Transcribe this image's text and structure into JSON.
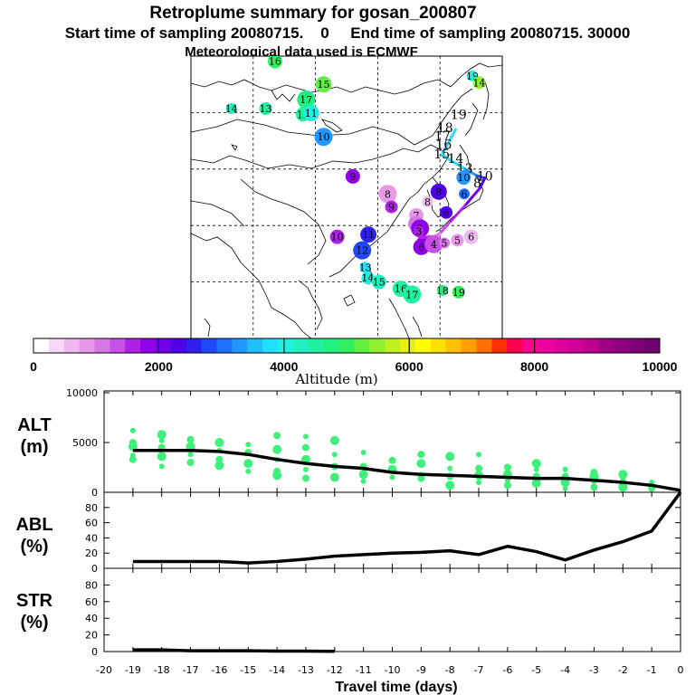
{
  "header": {
    "title": "Retroplume summary for gosan_200807",
    "sampling": "Start time of sampling 20080715.    0     End time of sampling 20080715. 30000",
    "met": "Meteorological data used is ECMWF"
  },
  "colorbar": {
    "label": "Altitude (m)",
    "ticks": [
      "0",
      "2000",
      "4000",
      "6000",
      "8000",
      "10000"
    ],
    "colors": [
      "#ffffff",
      "#f8d8f8",
      "#f0b8f0",
      "#e898e8",
      "#d878e8",
      "#c850e8",
      "#b020e8",
      "#9000e8",
      "#7000e8",
      "#5000e8",
      "#3020f0",
      "#2048f8",
      "#2070ff",
      "#2098ff",
      "#20c0ff",
      "#20e0ff",
      "#20f0e0",
      "#20f0c0",
      "#20f0a0",
      "#20f080",
      "#30f060",
      "#60f040",
      "#90f030",
      "#c0f020",
      "#e8f010",
      "#ffff00",
      "#ffe000",
      "#ffc000",
      "#ffa000",
      "#ff7000",
      "#ff3000",
      "#ff0050",
      "#ff0090",
      "#f000a0",
      "#e000a0",
      "#d00098",
      "#c00090",
      "#a00088",
      "#900080",
      "#800078",
      "#700070"
    ]
  },
  "map": {
    "labels": [
      {
        "t": "19",
        "lon": 125.2,
        "lat": 56.5,
        "alt": 4000
      },
      {
        "t": "14",
        "lon": 126.3,
        "lat": 55.3,
        "alt": 5600
      },
      {
        "t": "16",
        "lon": 93.5,
        "lat": 59.1,
        "alt": 5000
      },
      {
        "t": "15",
        "lon": 101.3,
        "lat": 55.0,
        "alt": 5300
      },
      {
        "t": "17",
        "lon": 98.5,
        "lat": 52.3,
        "alt": 4800
      },
      {
        "t": "14",
        "lon": 86.5,
        "lat": 50.7,
        "alt": 4200
      },
      {
        "t": "13",
        "lon": 92.0,
        "lat": 50.7,
        "alt": 4400
      },
      {
        "t": "12",
        "lon": 98.0,
        "lat": 49.7,
        "alt": 4400
      },
      {
        "t": "11",
        "lon": 99.3,
        "lat": 49.9,
        "alt": 4000
      },
      {
        "t": "10",
        "lon": 101.3,
        "lat": 45.7,
        "alt": 3400
      },
      {
        "t": "19",
        "lon": 123.0,
        "lat": 49.5,
        "alt": null
      },
      {
        "t": "18",
        "lon": 120.8,
        "lat": 47.2,
        "alt": null
      },
      {
        "t": "17",
        "lon": 120.4,
        "lat": 45.7,
        "alt": null
      },
      {
        "t": "16",
        "lon": 120.6,
        "lat": 44.2,
        "alt": null
      },
      {
        "t": "15",
        "lon": 120.3,
        "lat": 42.5,
        "alt": null
      },
      {
        "t": "14",
        "lon": 122.5,
        "lat": 41.7,
        "alt": null
      },
      {
        "t": "13",
        "lon": 124.0,
        "lat": 40.0,
        "alt": null
      },
      {
        "t": "10",
        "lon": 123.8,
        "lat": 38.5,
        "alt": 3200
      },
      {
        "t": "10",
        "lon": 127.2,
        "lat": 38.6,
        "alt": null
      },
      {
        "t": "8",
        "lon": 126.0,
        "lat": 37.4,
        "alt": null
      },
      {
        "t": "6",
        "lon": 123.9,
        "lat": 35.6,
        "alt": 3000
      },
      {
        "t": "6",
        "lon": 121.0,
        "lat": 32.3,
        "alt": 2400
      },
      {
        "t": "9",
        "lon": 106.0,
        "lat": 38.7,
        "alt": 1900
      },
      {
        "t": "8",
        "lon": 119.8,
        "lat": 36.0,
        "alt": 2200
      },
      {
        "t": "8",
        "lon": 111.6,
        "lat": 35.6,
        "alt": 900
      },
      {
        "t": "8",
        "lon": 118.0,
        "lat": 34.2,
        "alt": 500
      },
      {
        "t": "9",
        "lon": 112.2,
        "lat": 33.3,
        "alt": 1700
      },
      {
        "t": "10",
        "lon": 103.5,
        "lat": 28.0,
        "alt": 1500
      },
      {
        "t": "11",
        "lon": 108.5,
        "lat": 28.4,
        "alt": 2500
      },
      {
        "t": "12",
        "lon": 107.5,
        "lat": 25.6,
        "alt": 2700
      },
      {
        "t": "13",
        "lon": 108.0,
        "lat": 22.6,
        "alt": 3800
      },
      {
        "t": "14",
        "lon": 108.4,
        "lat": 20.7,
        "alt": 4100
      },
      {
        "t": "15",
        "lon": 110.2,
        "lat": 20.0,
        "alt": 4300
      },
      {
        "t": "16",
        "lon": 113.7,
        "lat": 18.8,
        "alt": 4500
      },
      {
        "t": "17",
        "lon": 115.5,
        "lat": 17.8,
        "alt": 4500
      },
      {
        "t": "18",
        "lon": 120.4,
        "lat": 18.5,
        "alt": 4700
      },
      {
        "t": "19",
        "lon": 123.0,
        "lat": 18.2,
        "alt": 4900
      },
      {
        "t": "7",
        "lon": 116.2,
        "lat": 31.8,
        "alt": 900
      },
      {
        "t": "4",
        "lon": 116.2,
        "lat": 30.3,
        "alt": 1200
      },
      {
        "t": "2",
        "lon": 116.8,
        "lat": 29.5,
        "alt": 1800
      },
      {
        "t": "3",
        "lon": 116.6,
        "lat": 29.0,
        "alt": 1700
      },
      {
        "t": "5",
        "lon": 118.4,
        "lat": 27.2,
        "alt": 1400
      },
      {
        "t": "3",
        "lon": 117.4,
        "lat": 27.0,
        "alt": 1500
      },
      {
        "t": "6",
        "lon": 117.0,
        "lat": 26.2,
        "alt": 1800
      },
      {
        "t": "4",
        "lon": 119.0,
        "lat": 26.7,
        "alt": 1300
      },
      {
        "t": "5",
        "lon": 120.7,
        "lat": 26.9,
        "alt": 1100
      },
      {
        "t": "5",
        "lon": 122.8,
        "lat": 27.4,
        "alt": 900
      },
      {
        "t": "6",
        "lon": 125.0,
        "lat": 28.0,
        "alt": 700
      }
    ],
    "track": [
      {
        "lon": 122.5,
        "lat": 47.0,
        "alt": 3700
      },
      {
        "lon": 120.3,
        "lat": 42.5,
        "alt": 3800
      },
      {
        "lon": 124.0,
        "lat": 40.0,
        "alt": 3600
      },
      {
        "lon": 126.0,
        "lat": 38.8,
        "alt": 3000
      },
      {
        "lon": 127.2,
        "lat": 38.4,
        "alt": 2600
      },
      {
        "lon": 126.4,
        "lat": 36.6,
        "alt": 2200
      },
      {
        "lon": 124.0,
        "lat": 33.5,
        "alt": 1800
      },
      {
        "lon": 121.5,
        "lat": 30.5,
        "alt": 1400
      },
      {
        "lon": 120.0,
        "lat": 28.6,
        "alt": 1200
      },
      {
        "lon": 119.0,
        "lat": 28.0,
        "alt": 1000
      }
    ]
  },
  "chart_data": [
    {
      "type": "scatter",
      "name": "ALT",
      "ylabel_top": "ALT",
      "ylabel_unit": "(m)",
      "ylim": [
        0,
        10000
      ],
      "yticks": [
        "0",
        "5000",
        "10000"
      ],
      "xlim": [
        -20,
        0
      ],
      "line_x": [
        -19,
        -18,
        -17,
        -16,
        -15,
        -14,
        -13,
        -12,
        -11,
        -10,
        -9,
        -8,
        -7,
        -6,
        -5,
        -4,
        -3,
        -2,
        -1,
        0
      ],
      "line_y": [
        4200,
        4200,
        4200,
        4100,
        3800,
        3300,
        2900,
        2600,
        2400,
        2000,
        1800,
        1700,
        1600,
        1500,
        1400,
        1400,
        1200,
        1000,
        700,
        200
      ],
      "points": [
        {
          "x": -19,
          "y": 6200
        },
        {
          "x": -19,
          "y": 5000
        },
        {
          "x": -19,
          "y": 4600
        },
        {
          "x": -19,
          "y": 3700
        },
        {
          "x": -19,
          "y": 3300
        },
        {
          "x": -18,
          "y": 5800
        },
        {
          "x": -18,
          "y": 5200
        },
        {
          "x": -18,
          "y": 4500
        },
        {
          "x": -18,
          "y": 3600
        },
        {
          "x": -18,
          "y": 2600
        },
        {
          "x": -17,
          "y": 5300
        },
        {
          "x": -17,
          "y": 4600
        },
        {
          "x": -17,
          "y": 3800
        },
        {
          "x": -17,
          "y": 3000
        },
        {
          "x": -16,
          "y": 5000
        },
        {
          "x": -16,
          "y": 4200
        },
        {
          "x": -16,
          "y": 3300
        },
        {
          "x": -16,
          "y": 2700
        },
        {
          "x": -15,
          "y": 4800
        },
        {
          "x": -15,
          "y": 4000
        },
        {
          "x": -15,
          "y": 2900
        },
        {
          "x": -15,
          "y": 2100
        },
        {
          "x": -14,
          "y": 5700
        },
        {
          "x": -14,
          "y": 4300
        },
        {
          "x": -14,
          "y": 3300
        },
        {
          "x": -14,
          "y": 2100
        },
        {
          "x": -14,
          "y": 1700
        },
        {
          "x": -13,
          "y": 5600
        },
        {
          "x": -13,
          "y": 4500
        },
        {
          "x": -13,
          "y": 3300
        },
        {
          "x": -13,
          "y": 2300
        },
        {
          "x": -13,
          "y": 1400
        },
        {
          "x": -12,
          "y": 5200
        },
        {
          "x": -12,
          "y": 3800
        },
        {
          "x": -12,
          "y": 2600
        },
        {
          "x": -12,
          "y": 1500
        },
        {
          "x": -11,
          "y": 4000
        },
        {
          "x": -11,
          "y": 2600
        },
        {
          "x": -11,
          "y": 1800
        },
        {
          "x": -11,
          "y": 1100
        },
        {
          "x": -10,
          "y": 3200
        },
        {
          "x": -10,
          "y": 2300
        },
        {
          "x": -10,
          "y": 1500
        },
        {
          "x": -9,
          "y": 3800
        },
        {
          "x": -9,
          "y": 2900
        },
        {
          "x": -9,
          "y": 1800
        },
        {
          "x": -9,
          "y": 1400
        },
        {
          "x": -8,
          "y": 3600
        },
        {
          "x": -8,
          "y": 2400
        },
        {
          "x": -8,
          "y": 1600
        },
        {
          "x": -8,
          "y": 700
        },
        {
          "x": -7,
          "y": 3800
        },
        {
          "x": -7,
          "y": 2400
        },
        {
          "x": -7,
          "y": 1700
        },
        {
          "x": -7,
          "y": 1000
        },
        {
          "x": -6,
          "y": 2500
        },
        {
          "x": -6,
          "y": 1800
        },
        {
          "x": -6,
          "y": 1200
        },
        {
          "x": -6,
          "y": 700
        },
        {
          "x": -5,
          "y": 2900
        },
        {
          "x": -5,
          "y": 2300
        },
        {
          "x": -5,
          "y": 1600
        },
        {
          "x": -5,
          "y": 900
        },
        {
          "x": -4,
          "y": 2300
        },
        {
          "x": -4,
          "y": 1600
        },
        {
          "x": -4,
          "y": 1000
        },
        {
          "x": -4,
          "y": 400
        },
        {
          "x": -3,
          "y": 2000
        },
        {
          "x": -3,
          "y": 1600
        },
        {
          "x": -3,
          "y": 1100
        },
        {
          "x": -3,
          "y": 500
        },
        {
          "x": -2,
          "y": 1800
        },
        {
          "x": -2,
          "y": 1300
        },
        {
          "x": -2,
          "y": 800
        },
        {
          "x": -2,
          "y": 500
        },
        {
          "x": -1,
          "y": 1000
        },
        {
          "x": -1,
          "y": 400
        }
      ]
    },
    {
      "type": "line",
      "name": "ABL",
      "ylabel_top": "ABL",
      "ylabel_unit": "(%)",
      "ylim": [
        0,
        100
      ],
      "yticks": [
        "0",
        "20",
        "40",
        "60",
        "80"
      ],
      "xlim": [
        -20,
        0
      ],
      "x": [
        -19,
        -18,
        -17,
        -16,
        -15,
        -14,
        -13,
        -12,
        -11,
        -10,
        -9,
        -8,
        -7,
        -6,
        -5,
        -4,
        -3,
        -2,
        -1,
        0
      ],
      "y": [
        9,
        9,
        9,
        9,
        7,
        9,
        12,
        16,
        18,
        20,
        21,
        23,
        18,
        29,
        22,
        11,
        24,
        35,
        49,
        100
      ]
    },
    {
      "type": "line",
      "name": "STR",
      "ylabel_top": "STR",
      "ylabel_unit": "(%)",
      "ylim": [
        0,
        100
      ],
      "yticks": [
        "0",
        "20",
        "40",
        "60",
        "80"
      ],
      "xlim": [
        -20,
        0
      ],
      "x": [
        -19,
        -18,
        -17,
        -16,
        -15,
        -14,
        -13,
        -12
      ],
      "y": [
        2,
        2,
        1,
        1,
        1,
        0.5,
        0.5,
        0.3
      ]
    }
  ],
  "xaxis": {
    "label": "Travel time (days)",
    "ticks": [
      "-20",
      "-19",
      "-18",
      "-17",
      "-16",
      "-15",
      "-14",
      "-13",
      "-12",
      "-11",
      "-10",
      "-9",
      "-8",
      "-7",
      "-6",
      "-5",
      "-4",
      "-3",
      "-2",
      "-1",
      "0"
    ]
  }
}
